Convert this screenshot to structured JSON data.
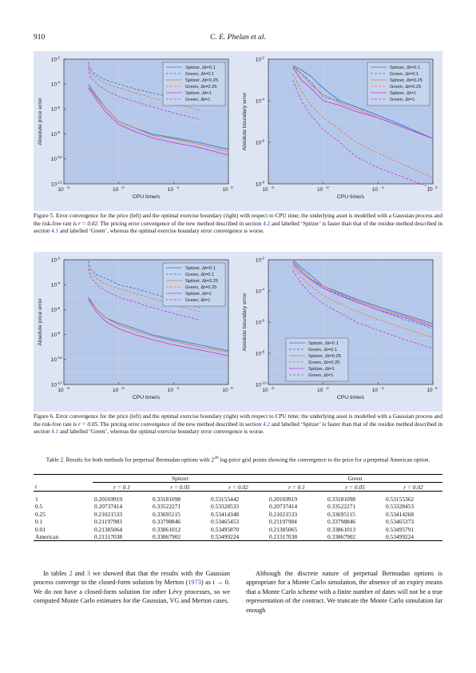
{
  "header": {
    "page_number": "910",
    "authors": "C. E. Phelan et al."
  },
  "figure5": {
    "left": {
      "ylabel": "Absolute price error",
      "xlabel": "CPU time/s"
    },
    "right": {
      "ylabel": "Absolute boundary error",
      "xlabel": "CPU time/s"
    },
    "caption_parts": [
      "Figure 5.  Error convergence for the price (left) and the optimal exercise boundary (right) with respect to CPU time; the underlying asset is modelled with a Gaussian process and the risk-free rate is ",
      "r = 0.02",
      ". The pricing error convergence of the new method described in section ",
      "4.2",
      " and labelled ‘Spitzer’ is faster than that of the residue method described in section ",
      "4.1",
      " and labelled ‘Green’, whereas the optimal exercise boundary error convergence is worse."
    ]
  },
  "figure6": {
    "left": {
      "ylabel": "Absolute price error",
      "xlabel": "CPU time/s"
    },
    "right": {
      "ylabel": "Absolute boundary error",
      "xlabel": "CPU time/s"
    },
    "caption_parts": [
      "Figure 6.  Error convergence for the price (left) and the optimal exercise boundary (right) with respect to CPU time; the underlying asset is modelled with a Gaussian process and the risk-free rate is ",
      "r = 0.05",
      ". The pricing error convergence of the new method described in section ",
      "4.2",
      " and labelled ‘Spitzer’ is faster than that of the residue method described in section ",
      "4.1",
      " and labelled ‘Green’, whereas the optimal exercise boundary error convergence is worse."
    ]
  },
  "legend": [
    "Spitzer, Δt=0.1",
    "Green, Δt=0.1",
    "Spitzer, Δt=0.25",
    "Green, Δt=0.25",
    "Spitzer, Δt=1",
    "Green, Δt=1"
  ],
  "series_colors": [
    "#1f77d4",
    "#1f77d4",
    "#e8743b",
    "#e8743b",
    "#d62bd6",
    "#d62bd6"
  ],
  "xtick_labels": [
    "10",
    "10",
    "10",
    "10"
  ],
  "xtick_exps": [
    "-3",
    "-2",
    "-1",
    "0"
  ],
  "chart_data": [
    {
      "type": "line",
      "title": "",
      "xlabel": "CPU time/s",
      "ylabel": "Absolute price error",
      "xscale": "log",
      "yscale": "log",
      "xlim": [
        0.001,
        1
      ],
      "ylim": [
        1e-12,
        0.01
      ],
      "ytick_exps": [
        "-2",
        "-4",
        "-6",
        "-8",
        "-10",
        "-12"
      ],
      "legend_position": "top-right",
      "series": [
        {
          "name": "Spitzer, Δt=0.1",
          "style": "solid",
          "x": [
            0.0028,
            0.004,
            0.006,
            0.01,
            0.02,
            0.04,
            0.1,
            0.3,
            1
          ],
          "y": [
            0.0001,
            1e-05,
            1e-06,
            1e-07,
            3e-08,
            1e-08,
            5e-09,
            2e-09,
            6e-10
          ]
        },
        {
          "name": "Green, Δt=0.1",
          "style": "dashed",
          "x": [
            0.0028,
            0.003,
            0.004,
            0.006,
            0.01,
            0.02,
            0.04,
            0.1,
            0.3
          ],
          "y": [
            0.006,
            0.0015,
            0.0005,
            0.0002,
            0.0001,
            4e-05,
            2e-05,
            8e-06,
            2e-06
          ]
        },
        {
          "name": "Spitzer, Δt=0.25",
          "style": "solid",
          "x": [
            0.0028,
            0.004,
            0.006,
            0.01,
            0.02,
            0.04,
            0.1,
            0.3,
            1
          ],
          "y": [
            6e-05,
            8e-06,
            1e-06,
            1e-07,
            3e-08,
            8e-09,
            4e-09,
            1.5e-09,
            4e-10
          ]
        },
        {
          "name": "Green, Δt=0.25",
          "style": "dashed",
          "x": [
            0.0028,
            0.003,
            0.004,
            0.006,
            0.01,
            0.02,
            0.04,
            0.1,
            0.3
          ],
          "y": [
            0.005,
            0.001,
            0.0003,
            0.0001,
            5e-05,
            2e-05,
            8e-06,
            3e-06,
            8e-07
          ]
        },
        {
          "name": "Spitzer, Δt=1",
          "style": "solid",
          "x": [
            0.0028,
            0.004,
            0.006,
            0.01,
            0.02,
            0.04,
            0.1,
            0.3,
            1
          ],
          "y": [
            5e-05,
            5e-06,
            5e-07,
            6e-08,
            1.5e-08,
            5e-09,
            2e-09,
            8e-10,
            2e-10
          ]
        },
        {
          "name": "Green, Δt=1",
          "style": "dashed",
          "x": [
            0.0028,
            0.003,
            0.004,
            0.006,
            0.01,
            0.02,
            0.04,
            0.1,
            0.3
          ],
          "y": [
            0.002,
            0.0004,
            0.0001,
            3e-05,
            1e-05,
            4e-06,
            1.5e-06,
            5e-07,
            1.5e-07
          ]
        }
      ]
    },
    {
      "type": "line",
      "title": "",
      "xlabel": "CPU time/s",
      "ylabel": "Absolute boundary error",
      "xscale": "log",
      "yscale": "log",
      "xlim": [
        0.001,
        1
      ],
      "ylim": [
        1e-08,
        0.01
      ],
      "ytick_exps": [
        "-2",
        "-4",
        "-6",
        "-8"
      ],
      "legend_position": "top-right",
      "series": [
        {
          "name": "Spitzer, Δt=0.1",
          "style": "solid",
          "x": [
            0.0028,
            0.004,
            0.006,
            0.01,
            0.02,
            0.04,
            0.1,
            0.3,
            1
          ],
          "y": [
            0.005,
            0.003,
            0.0015,
            0.0004,
            0.0001,
            5e-05,
            2e-05,
            6e-06,
            1.5e-06
          ]
        },
        {
          "name": "Green, Δt=0.1",
          "style": "dashed",
          "x": [
            0.0028,
            0.004,
            0.006,
            0.01,
            0.02,
            0.04,
            0.1,
            0.3,
            1
          ],
          "y": [
            0.004,
            0.002,
            0.0008,
            0.00015,
            0.0001,
            5e-05,
            2e-05,
            6e-06,
            1.5e-06
          ]
        },
        {
          "name": "Spitzer, Δt=0.25",
          "style": "solid",
          "x": [
            0.0028,
            0.004,
            0.006,
            0.01,
            0.02,
            0.04,
            0.1,
            0.3,
            1
          ],
          "y": [
            0.005,
            0.002,
            0.0006,
            0.0002,
            8e-05,
            4e-05,
            1.5e-05,
            5e-06,
            1.5e-06
          ]
        },
        {
          "name": "Green, Δt=0.25",
          "style": "dashed",
          "x": [
            0.0028,
            0.004,
            0.006,
            0.01,
            0.02,
            0.04,
            0.1,
            0.3,
            1
          ],
          "y": [
            0.002,
            0.0003,
            6e-05,
            1.5e-05,
            4e-06,
            1e-06,
            3e-07,
            8e-08,
            2e-08
          ]
        },
        {
          "name": "Spitzer, Δt=1",
          "style": "solid",
          "x": [
            0.0028,
            0.004,
            0.006,
            0.01,
            0.02,
            0.04,
            0.1,
            0.3,
            1
          ],
          "y": [
            0.004,
            0.001,
            0.0004,
            0.0001,
            6e-05,
            3e-05,
            1.5e-05,
            5e-06,
            1.5e-06
          ]
        },
        {
          "name": "Green, Δt=1",
          "style": "dashed",
          "x": [
            0.0028,
            0.004,
            0.006,
            0.01,
            0.02,
            0.04,
            0.1,
            0.3,
            1
          ],
          "y": [
            0.001,
            0.0001,
            2e-05,
            4e-06,
            1e-06,
            2e-07,
            6e-08,
            2e-08,
            6e-09
          ]
        }
      ]
    },
    {
      "type": "line",
      "title": "",
      "xlabel": "CPU time/s",
      "ylabel": "Absolute price error",
      "xscale": "log",
      "yscale": "log",
      "xlim": [
        0.001,
        1
      ],
      "ylim": [
        1e-12,
        0.01
      ],
      "ytick_exps": [
        "-2",
        "-4",
        "-6",
        "-8",
        "-10",
        "-12"
      ],
      "legend_position": "top-right",
      "series": [
        {
          "name": "Spitzer, Δt=0.1",
          "style": "solid",
          "x": [
            0.0028,
            0.004,
            0.006,
            0.01,
            0.02,
            0.04,
            0.1,
            0.3,
            1
          ],
          "y": [
            1e-05,
            1e-06,
            2e-07,
            8e-08,
            3e-08,
            1e-08,
            4e-09,
            1.5e-09,
            5e-10
          ]
        },
        {
          "name": "Green, Δt=0.1",
          "style": "dashed",
          "x": [
            0.0028,
            0.003,
            0.004,
            0.006,
            0.01,
            0.02,
            0.04,
            0.1,
            0.3
          ],
          "y": [
            0.008,
            0.002,
            0.0006,
            0.0003,
            0.0001,
            5e-05,
            2e-05,
            6e-06,
            1.5e-06
          ]
        },
        {
          "name": "Spitzer, Δt=0.25",
          "style": "solid",
          "x": [
            0.0028,
            0.004,
            0.006,
            0.01,
            0.02,
            0.04,
            0.1,
            0.3,
            1
          ],
          "y": [
            8e-06,
            1e-06,
            2e-07,
            6e-08,
            2e-08,
            8e-09,
            3e-09,
            1e-09,
            4e-10
          ]
        },
        {
          "name": "Green, Δt=0.25",
          "style": "dashed",
          "x": [
            0.0028,
            0.003,
            0.004,
            0.006,
            0.01,
            0.02,
            0.04,
            0.1,
            0.3
          ],
          "y": [
            0.004,
            0.001,
            0.0003,
            0.0001,
            5e-05,
            2e-05,
            8e-06,
            2.5e-06,
            7e-07
          ]
        },
        {
          "name": "Spitzer, Δt=1",
          "style": "solid",
          "x": [
            0.0028,
            0.004,
            0.006,
            0.01,
            0.02,
            0.04,
            0.1,
            0.3,
            1
          ],
          "y": [
            6e-06,
            6e-07,
            1e-07,
            3e-08,
            1e-08,
            4e-09,
            1.5e-09,
            6e-10,
            2e-10
          ]
        },
        {
          "name": "Green, Δt=1",
          "style": "dashed",
          "x": [
            0.0028,
            0.003,
            0.004,
            0.006,
            0.01,
            0.02,
            0.04,
            0.1,
            0.3
          ],
          "y": [
            0.002,
            0.0005,
            0.0001,
            3e-05,
            1e-05,
            4e-06,
            1.5e-06,
            5e-07,
            1.5e-07
          ]
        }
      ]
    },
    {
      "type": "line",
      "title": "",
      "xlabel": "CPU time/s",
      "ylabel": "Absolute boundary error",
      "xscale": "log",
      "yscale": "log",
      "xlim": [
        0.001,
        1
      ],
      "ylim": [
        1e-10,
        0.01
      ],
      "ytick_exps": [
        "-2",
        "-4",
        "-6",
        "-8",
        "-10"
      ],
      "legend_position": "bottom-left",
      "series": [
        {
          "name": "Spitzer, Δt=0.1",
          "style": "solid",
          "x": [
            0.0028,
            0.004,
            0.006,
            0.01,
            0.02,
            0.04,
            0.1,
            0.3,
            1
          ],
          "y": [
            0.01,
            0.003,
            0.001,
            0.0002,
            8e-05,
            3e-05,
            1e-05,
            3e-06,
            8e-07
          ]
        },
        {
          "name": "Green, Δt=0.1",
          "style": "dashed",
          "x": [
            0.0028,
            0.004,
            0.006,
            0.01,
            0.02,
            0.04,
            0.1,
            0.3,
            1
          ],
          "y": [
            0.008,
            0.002,
            0.0006,
            0.00015,
            6e-05,
            2e-05,
            6e-06,
            1.5e-06,
            4e-07
          ]
        },
        {
          "name": "Spitzer, Δt=0.25",
          "style": "solid",
          "x": [
            0.0028,
            0.004,
            0.006,
            0.01,
            0.02,
            0.04,
            0.1,
            0.3,
            1
          ],
          "y": [
            0.008,
            0.002,
            0.0006,
            0.0002,
            7e-05,
            2.5e-05,
            8e-06,
            2.5e-06,
            6e-07
          ]
        },
        {
          "name": "Green, Δt=0.25",
          "style": "dashed",
          "x": [
            0.0028,
            0.004,
            0.006,
            0.01,
            0.02,
            0.04,
            0.1,
            0.3,
            1
          ],
          "y": [
            0.004,
            0.0008,
            0.0002,
            5e-05,
            1.5e-05,
            5e-06,
            1.5e-06,
            4e-07,
            1e-07
          ]
        },
        {
          "name": "Spitzer, Δt=1",
          "style": "solid",
          "x": [
            0.0028,
            0.004,
            0.006,
            0.01,
            0.02,
            0.04,
            0.1,
            0.3,
            1
          ],
          "y": [
            0.006,
            0.0015,
            0.0005,
            0.00015,
            5e-05,
            2e-05,
            6e-06,
            2e-06,
            5e-07
          ]
        },
        {
          "name": "Green, Δt=1",
          "style": "dashed",
          "x": [
            0.0028,
            0.004,
            0.006,
            0.01,
            0.02,
            0.04,
            0.1,
            0.3,
            1
          ],
          "y": [
            0.002,
            0.0003,
            6e-05,
            1.5e-05,
            4e-06,
            1e-06,
            3e-07,
            8e-08,
            2e-08
          ]
        }
      ]
    }
  ],
  "table2": {
    "caption_a": "Table  2.  Results for both methods for perpetual Bermudan options with 2",
    "caption_sup": "20",
    "caption_b": " log-price grid points showing the convergence to the price for a perpetual American option.",
    "group_spitzer": "Spitzer",
    "group_green": "Green",
    "col_t": "t",
    "r_headers": [
      "r = 0.1",
      "r = 0.05",
      "r = 0.02",
      "r = 0.1",
      "r = 0.05",
      "r = 0.02"
    ],
    "rows": [
      [
        "1",
        "0.20169919",
        "0.33181098",
        "0.53155442",
        "0.20169919",
        "0.33181098",
        "0.53155362"
      ],
      [
        "0.5",
        "0.20737414",
        "0.33522271",
        "0.53328533",
        "0.20737414",
        "0.33522271",
        "0.53328453"
      ],
      [
        "0.25",
        "0.21021533",
        "0.33695115",
        "0.53414348",
        "0.21021533",
        "0.33695115",
        "0.53414268"
      ],
      [
        "0.1",
        "0.21197983",
        "0.33798846",
        "0.53465453",
        "0.21197984",
        "0.33798846",
        "0.53465373"
      ],
      [
        "0.01",
        "0.21305064",
        "0.33861012",
        "0.53495870",
        "0.21305065",
        "0.33861013",
        "0.53495791"
      ],
      [
        "American",
        "0.21317038",
        "0.33867902",
        "0.53499224",
        "0.21317038",
        "0.33867902",
        "0.53499224"
      ]
    ]
  },
  "body": {
    "left_parts": [
      "In tables ",
      "2",
      " and ",
      "3",
      " we showed that that the results with the Gaussian process converge to the closed-form solution by Merton (",
      "1973",
      ") as  t → 0. We do not have a closed-form solution for other Lévy processes, so we computed Monte Carlo estimates for the Gaussian, VG and Merton cases."
    ],
    "right_text": "Although the discrete nature of perpetual Bermudan options is appropriate for a Monte Carlo simulation, the absence of an expiry means that a Monte Carlo scheme with a finite number of dates will not be a true representation of the contract. We truncate the Monte Carlo simulation far enough"
  }
}
